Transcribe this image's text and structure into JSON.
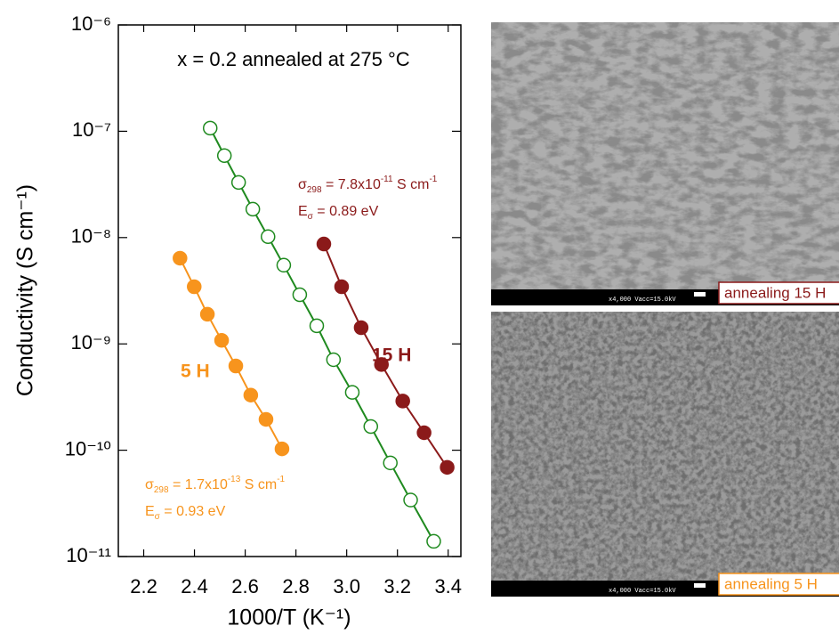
{
  "chart_data": {
    "type": "line",
    "title": "x = 0.2 annealed at 275 °C",
    "x_label": "1000/T (K⁻¹)",
    "y_label": "Conductivity (S cm⁻¹)",
    "xlim": [
      2.1,
      3.45
    ],
    "xticks": [
      2.2,
      2.4,
      2.6,
      2.8,
      {
        "value": 3,
        "label": "3.0"
      },
      3.2,
      3.4
    ],
    "ylim": [
      1e-11,
      1e-06
    ],
    "log_y": true,
    "yticks": [
      {
        "value": 1e-11,
        "label": "10⁻¹¹"
      },
      {
        "value": 1e-10,
        "label": "10⁻¹⁰"
      },
      {
        "value": 1e-09,
        "label": "10⁻⁹"
      },
      {
        "value": 1e-08,
        "label": "10⁻⁸"
      },
      {
        "value": 1e-07,
        "label": "10⁻⁷"
      },
      {
        "value": 1e-06,
        "label": "10⁻⁶"
      }
    ],
    "series": [
      {
        "name": "5 H",
        "color": "#f7941d",
        "marker": "filled",
        "x": [
          2.343,
          2.399,
          2.451,
          2.507,
          2.563,
          2.622,
          2.682,
          2.745
        ],
        "values": [
          6.4e-09,
          3.45e-09,
          1.9e-09,
          1.08e-09,
          6.2e-10,
          3.3e-10,
          1.95e-10,
          1.03e-10
        ]
      },
      {
        "color": "#1f8a1f",
        "marker": "open",
        "x": [
          2.462,
          2.518,
          2.574,
          2.63,
          2.69,
          2.752,
          2.815,
          2.882,
          2.948,
          3.022,
          3.095,
          3.172,
          3.252,
          3.343
        ],
        "values": [
          1.07e-07,
          5.9e-08,
          3.3e-08,
          1.85e-08,
          1.02e-08,
          5.5e-09,
          2.9e-09,
          1.48e-09,
          7.1e-10,
          3.5e-10,
          1.67e-10,
          7.6e-11,
          3.4e-11,
          1.39e-11
        ]
      },
      {
        "name": "15 H",
        "color": "#8b1a1a",
        "marker": "filled",
        "x": [
          2.91,
          2.98,
          3.057,
          3.137,
          3.221,
          3.305,
          3.396
        ],
        "values": [
          8.7e-09,
          3.45e-09,
          1.42e-09,
          6.4e-10,
          2.9e-10,
          1.46e-10,
          6.9e-11
        ]
      }
    ],
    "annotations": [
      {
        "color": "#8b1a1a",
        "lines": [
          [
            {
              "text": "σ"
            },
            {
              "text": "298",
              "sub": true
            },
            {
              "text": " = 7.8x10"
            },
            {
              "text": "-11",
              "sup": true
            },
            {
              "text": " S cm"
            },
            {
              "text": "-1",
              "sup": true
            }
          ],
          [
            {
              "text": "E"
            },
            {
              "text": "σ",
              "sub": true
            },
            {
              "text": " = 0.89 eV"
            }
          ]
        ]
      },
      {
        "color": "#f7941d",
        "lines": [
          [
            {
              "text": "σ"
            },
            {
              "text": "298",
              "sub": true
            },
            {
              "text": " = 1.7x10"
            },
            {
              "text": "-13",
              "sup": true
            },
            {
              "text": " S cm"
            },
            {
              "text": "-1",
              "sup": true
            }
          ],
          [
            {
              "text": "E"
            },
            {
              "text": "σ",
              "sub": true
            },
            {
              "text": " = 0.93 eV"
            }
          ]
        ]
      }
    ]
  },
  "images": [
    {
      "caption": "annealing 15 H",
      "info": "x4,000 Vacc=15.0kV",
      "color": "#8b1a1a"
    },
    {
      "caption": "annealing 5 H",
      "info": "x4,000 Vacc=15.0kV",
      "color": "#f7941d"
    }
  ]
}
